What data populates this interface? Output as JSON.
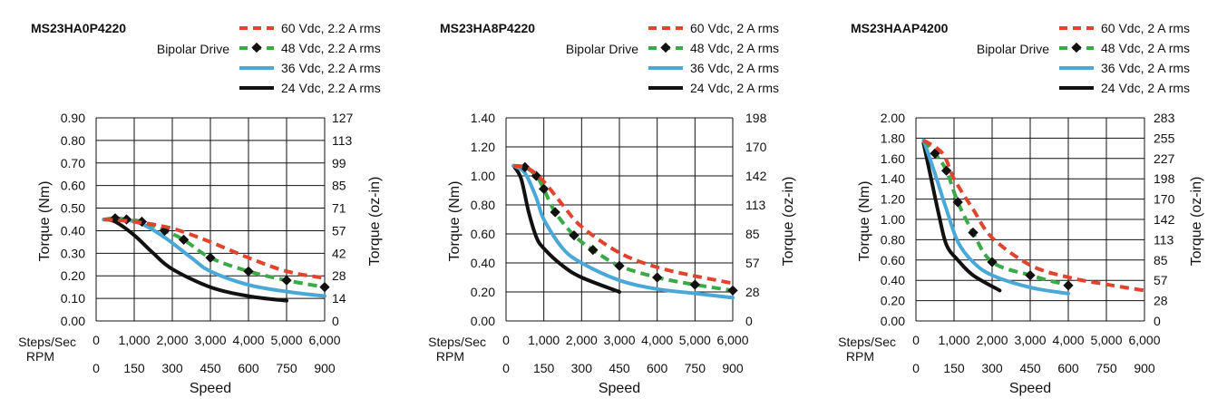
{
  "chart_data": [
    {
      "type": "line",
      "title": "MS23HA0P4220",
      "drive_label": "Bipolar Drive",
      "ylabel": "Torque (Nm)",
      "y2label": "Torque (oz-in)",
      "xlabel": "Speed",
      "x_row1_label": "Steps/Sec",
      "x_row2_label": "RPM",
      "ylim": [
        0,
        0.9
      ],
      "y_ticks": [
        "0.00",
        "0.10",
        "0.20",
        "0.30",
        "0.40",
        "0.50",
        "0.60",
        "0.70",
        "0.80",
        "0.90"
      ],
      "y2_ticks": [
        "0",
        "14",
        "28",
        "42",
        "57",
        "71",
        "85",
        "99",
        "113",
        "127"
      ],
      "xlim": [
        0,
        6000
      ],
      "x_ticks_steps": [
        "0",
        "1,000",
        "2,000",
        "3,000",
        "4,000",
        "5,000",
        "6,000"
      ],
      "x_ticks_rpm": [
        "0",
        "150",
        "300",
        "450",
        "600",
        "750",
        "900"
      ],
      "series": [
        {
          "name": "60 Vdc, 2.2 A rms",
          "color": "#e0442e",
          "style": "dashed",
          "markers": false,
          "points": [
            [
              200,
              0.45
            ],
            [
              1000,
              0.44
            ],
            [
              2000,
              0.41
            ],
            [
              3000,
              0.35
            ],
            [
              4000,
              0.28
            ],
            [
              5000,
              0.22
            ],
            [
              6000,
              0.19
            ]
          ]
        },
        {
          "name": "48 Vdc, 2.2 A rms",
          "color": "#3aaa48",
          "style": "dashed",
          "markers": true,
          "points": [
            [
              200,
              0.45
            ],
            [
              500,
              0.455
            ],
            [
              800,
              0.45
            ],
            [
              1200,
              0.44
            ],
            [
              1800,
              0.4
            ],
            [
              2300,
              0.36
            ],
            [
              3000,
              0.28
            ],
            [
              4000,
              0.22
            ],
            [
              5000,
              0.18
            ],
            [
              6000,
              0.15
            ]
          ]
        },
        {
          "name": "36 Vdc, 2.2 A rms",
          "color": "#4aa8d8",
          "style": "solid",
          "markers": false,
          "points": [
            [
              200,
              0.45
            ],
            [
              700,
              0.45
            ],
            [
              1200,
              0.43
            ],
            [
              1800,
              0.37
            ],
            [
              2500,
              0.28
            ],
            [
              3000,
              0.22
            ],
            [
              4000,
              0.16
            ],
            [
              5000,
              0.13
            ],
            [
              6000,
              0.11
            ]
          ]
        },
        {
          "name": "24 Vdc, 2.2 A rms",
          "color": "#111111",
          "style": "solid",
          "markers": false,
          "points": [
            [
              200,
              0.45
            ],
            [
              500,
              0.44
            ],
            [
              1000,
              0.38
            ],
            [
              1500,
              0.3
            ],
            [
              2000,
              0.23
            ],
            [
              3000,
              0.15
            ],
            [
              4000,
              0.11
            ],
            [
              5000,
              0.09
            ]
          ]
        }
      ]
    },
    {
      "type": "line",
      "title": "MS23HA8P4220",
      "drive_label": "Bipolar Drive",
      "ylabel": "Torque (Nm)",
      "y2label": "Torque (oz-in)",
      "xlabel": "Speed",
      "x_row1_label": "Steps/Sec",
      "x_row2_label": "RPM",
      "ylim": [
        0,
        1.4
      ],
      "y_ticks": [
        "0.00",
        "0.20",
        "0.40",
        "0.60",
        "0.80",
        "1.00",
        "1.20",
        "1.40"
      ],
      "y2_ticks": [
        "0",
        "28",
        "57",
        "85",
        "113",
        "142",
        "170",
        "198"
      ],
      "xlim": [
        0,
        6000
      ],
      "x_ticks_steps": [
        "0",
        "1,000",
        "2,000",
        "3,000",
        "4,000",
        "5,000",
        "6,000"
      ],
      "x_ticks_rpm": [
        "0",
        "150",
        "300",
        "450",
        "600",
        "750",
        "900"
      ],
      "series": [
        {
          "name": "60 Vdc, 2 A rms",
          "color": "#e0442e",
          "style": "dashed",
          "markers": false,
          "points": [
            [
              200,
              1.07
            ],
            [
              600,
              1.05
            ],
            [
              1000,
              0.96
            ],
            [
              1500,
              0.8
            ],
            [
              2000,
              0.65
            ],
            [
              3000,
              0.47
            ],
            [
              4000,
              0.37
            ],
            [
              5000,
              0.31
            ],
            [
              6000,
              0.26
            ]
          ]
        },
        {
          "name": "48 Vdc, 2 A rms",
          "color": "#3aaa48",
          "style": "dashed",
          "markers": true,
          "points": [
            [
              200,
              1.07
            ],
            [
              500,
              1.06
            ],
            [
              800,
              1.0
            ],
            [
              1000,
              0.91
            ],
            [
              1300,
              0.75
            ],
            [
              1800,
              0.59
            ],
            [
              2300,
              0.49
            ],
            [
              3000,
              0.38
            ],
            [
              4000,
              0.3
            ],
            [
              5000,
              0.25
            ],
            [
              6000,
              0.21
            ]
          ]
        },
        {
          "name": "36 Vdc, 2 A rms",
          "color": "#4aa8d8",
          "style": "solid",
          "markers": false,
          "points": [
            [
              200,
              1.07
            ],
            [
              500,
              1.02
            ],
            [
              800,
              0.85
            ],
            [
              1000,
              0.7
            ],
            [
              1500,
              0.5
            ],
            [
              2000,
              0.4
            ],
            [
              3000,
              0.28
            ],
            [
              4000,
              0.22
            ],
            [
              5000,
              0.19
            ],
            [
              6000,
              0.16
            ]
          ]
        },
        {
          "name": "24 Vdc, 2 A rms",
          "color": "#111111",
          "style": "solid",
          "markers": false,
          "points": [
            [
              200,
              1.07
            ],
            [
              400,
              0.98
            ],
            [
              600,
              0.75
            ],
            [
              800,
              0.58
            ],
            [
              1000,
              0.5
            ],
            [
              1500,
              0.38
            ],
            [
              2000,
              0.3
            ],
            [
              3000,
              0.2
            ]
          ]
        }
      ]
    },
    {
      "type": "line",
      "title": "MS23HAAP4200",
      "drive_label": "Bipolar Drive",
      "ylabel": "Torque (Nm)",
      "y2label": "Torque (oz-in)",
      "xlabel": "Speed",
      "x_row1_label": "Steps/Sec",
      "x_row2_label": "RPM",
      "ylim": [
        0,
        2.0
      ],
      "y_ticks": [
        "0.00",
        "0.20",
        "0.40",
        "0.60",
        "0.80",
        "1.00",
        "1.20",
        "1.40",
        "1.60",
        "1.80",
        "2.00"
      ],
      "y2_ticks": [
        "0",
        "28",
        "57",
        "85",
        "113",
        "142",
        "170",
        "198",
        "227",
        "255",
        "283"
      ],
      "xlim": [
        0,
        6000
      ],
      "x_ticks_steps": [
        "0",
        "1,000",
        "2,000",
        "3,000",
        "4,000",
        "5,000",
        "6,000"
      ],
      "x_ticks_rpm": [
        "0",
        "150",
        "300",
        "450",
        "600",
        "750",
        "900"
      ],
      "series": [
        {
          "name": "60 Vdc, 2 A rms",
          "color": "#e0442e",
          "style": "dashed",
          "markers": false,
          "points": [
            [
              200,
              1.78
            ],
            [
              700,
              1.65
            ],
            [
              1000,
              1.4
            ],
            [
              1500,
              1.1
            ],
            [
              2000,
              0.82
            ],
            [
              3000,
              0.55
            ],
            [
              4000,
              0.43
            ],
            [
              5000,
              0.36
            ],
            [
              6000,
              0.3
            ]
          ]
        },
        {
          "name": "48 Vdc, 2 A rms",
          "color": "#3aaa48",
          "style": "dashed",
          "markers": true,
          "points": [
            [
              200,
              1.78
            ],
            [
              500,
              1.65
            ],
            [
              800,
              1.48
            ],
            [
              1100,
              1.17
            ],
            [
              1500,
              0.87
            ],
            [
              2000,
              0.58
            ],
            [
              3000,
              0.45
            ],
            [
              4000,
              0.35
            ]
          ]
        },
        {
          "name": "36 Vdc, 2 A rms",
          "color": "#4aa8d8",
          "style": "solid",
          "markers": false,
          "points": [
            [
              200,
              1.78
            ],
            [
              500,
              1.45
            ],
            [
              800,
              1.1
            ],
            [
              1100,
              0.78
            ],
            [
              1500,
              0.58
            ],
            [
              2000,
              0.45
            ],
            [
              3000,
              0.33
            ],
            [
              4000,
              0.27
            ]
          ]
        },
        {
          "name": "24 Vdc, 2 A rms",
          "color": "#111111",
          "style": "solid",
          "markers": false,
          "points": [
            [
              200,
              1.75
            ],
            [
              400,
              1.4
            ],
            [
              600,
              1.05
            ],
            [
              800,
              0.75
            ],
            [
              1100,
              0.6
            ],
            [
              1500,
              0.45
            ],
            [
              2200,
              0.3
            ]
          ]
        }
      ]
    }
  ]
}
